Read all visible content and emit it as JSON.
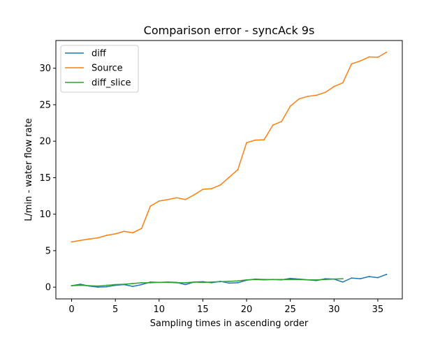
{
  "chart_data": {
    "type": "line",
    "title": "Comparison error - syncAck 9s",
    "xlabel": "Sampling times in ascending order",
    "ylabel": "L/min - water flow rate",
    "xlim": [
      -1.8,
      37.8
    ],
    "ylim": [
      -1.61,
      33.8
    ],
    "xticks": [
      0,
      5,
      10,
      15,
      20,
      25,
      30,
      35
    ],
    "yticks": [
      0,
      5,
      10,
      15,
      20,
      25,
      30
    ],
    "grid": false,
    "legend_position": "upper-left",
    "series": [
      {
        "name": "diff",
        "color": "#1f77b4",
        "x": [
          0,
          1,
          2,
          3,
          4,
          5,
          6,
          7,
          8,
          9,
          10,
          11,
          12,
          13,
          14,
          15,
          16,
          17,
          18,
          19,
          20,
          21,
          22,
          23,
          24,
          25,
          26,
          27,
          28,
          29,
          30,
          31,
          32,
          33,
          34,
          35,
          36
        ],
        "values": [
          0.2,
          0.4,
          0.15,
          0.0,
          0.05,
          0.25,
          0.35,
          0.1,
          0.35,
          0.7,
          0.65,
          0.7,
          0.65,
          0.35,
          0.7,
          0.75,
          0.6,
          0.8,
          0.55,
          0.6,
          0.95,
          1.1,
          1.05,
          1.05,
          1.0,
          1.2,
          1.1,
          1.0,
          0.9,
          1.15,
          1.1,
          0.7,
          1.25,
          1.15,
          1.45,
          1.3,
          1.75
        ]
      },
      {
        "name": "Source",
        "color": "#ff7f0e",
        "x": [
          0,
          1,
          2,
          3,
          4,
          5,
          6,
          7,
          8,
          9,
          10,
          11,
          12,
          13,
          14,
          15,
          16,
          17,
          18,
          19,
          20,
          21,
          22,
          23,
          24,
          25,
          26,
          27,
          28,
          29,
          30,
          31,
          32,
          33,
          34,
          35,
          36
        ],
        "values": [
          6.2,
          6.4,
          6.6,
          6.75,
          7.1,
          7.3,
          7.65,
          7.45,
          8.05,
          11.1,
          11.8,
          12.0,
          12.25,
          12.0,
          12.65,
          13.4,
          13.5,
          14.0,
          15.05,
          16.1,
          19.8,
          20.15,
          20.2,
          22.2,
          22.7,
          24.8,
          25.8,
          26.15,
          26.3,
          26.7,
          27.5,
          28.0,
          30.6,
          31.0,
          31.55,
          31.5,
          32.2
        ]
      },
      {
        "name": "diff_slice",
        "color": "#2ca02c",
        "x": [
          0,
          1,
          2,
          3,
          4,
          5,
          6,
          7,
          8,
          9,
          10,
          11,
          12,
          13,
          14,
          15,
          16,
          17,
          18,
          19,
          20,
          21,
          22,
          23,
          24,
          25,
          26,
          27,
          28,
          29,
          30,
          31
        ],
        "values": [
          0.2,
          0.25,
          0.2,
          0.15,
          0.25,
          0.35,
          0.4,
          0.5,
          0.6,
          0.6,
          0.65,
          0.65,
          0.6,
          0.6,
          0.7,
          0.65,
          0.7,
          0.75,
          0.8,
          0.85,
          1.0,
          1.05,
          1.0,
          1.05,
          1.05,
          1.05,
          1.05,
          1.0,
          1.0,
          1.05,
          1.1,
          1.15
        ]
      }
    ]
  }
}
